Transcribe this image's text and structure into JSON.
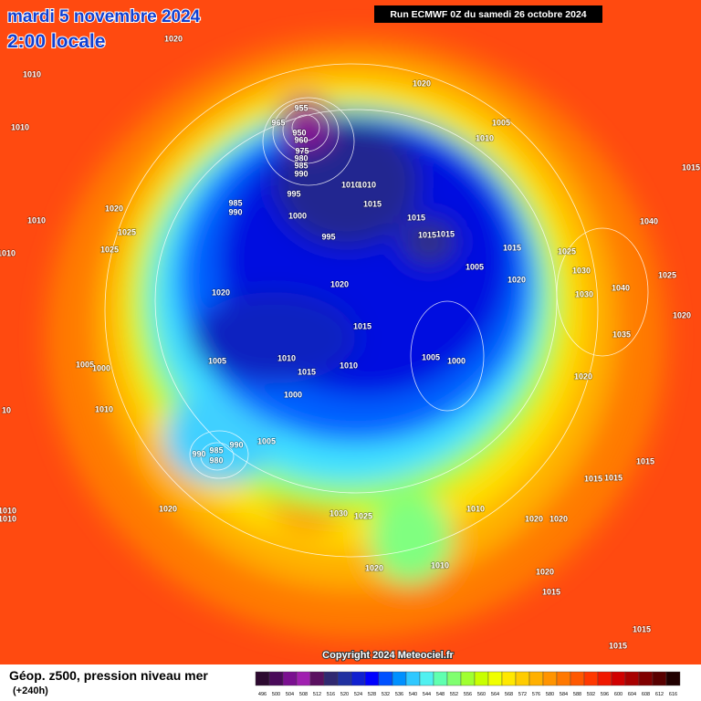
{
  "header": {
    "title": "mardi 5 novembre 2024",
    "subtitle": "2:00 locale",
    "run": "Run ECMWF 0Z du samedi 26 octobre 2024"
  },
  "copyright": "Copyright 2024 Meteociel.fr",
  "footer": {
    "label": "Géop. z500, pression niveau mer",
    "lead": "(+240h)"
  },
  "scale": {
    "labels": [
      496,
      500,
      504,
      508,
      512,
      516,
      520,
      524,
      528,
      532,
      536,
      540,
      544,
      548,
      552,
      556,
      560,
      564,
      568,
      572,
      576,
      580,
      584,
      588,
      592,
      596,
      600,
      604,
      608,
      612,
      616
    ],
    "colors": [
      "#2d0a30",
      "#4a0a5a",
      "#7a1090",
      "#a020b0",
      "#5a1060",
      "#302870",
      "#2030a0",
      "#1020d0",
      "#0000ff",
      "#0050ff",
      "#0090ff",
      "#30c8ff",
      "#50f0f0",
      "#60ffb0",
      "#80ff70",
      "#a0ff30",
      "#c8ff00",
      "#f0ff00",
      "#ffe800",
      "#ffcc00",
      "#ffb000",
      "#ff9400",
      "#ff7800",
      "#ff5800",
      "#ff3800",
      "#f01800",
      "#d00000",
      "#a80000",
      "#800000",
      "#580000",
      "#200000"
    ]
  },
  "isobar_labels": [
    1020,
    1010,
    1010,
    1020,
    955,
    965,
    950,
    960,
    975,
    980,
    985,
    990,
    1005,
    1010,
    1015,
    995,
    985,
    990,
    1010,
    1010,
    1015,
    1020,
    1010,
    1025,
    1000,
    995,
    1015,
    1015,
    1015,
    1015,
    1025,
    1040,
    1025,
    1010,
    1005,
    1030,
    1020,
    1020,
    1020,
    1030,
    1040,
    1025,
    1020,
    1015,
    1035,
    1005,
    1000,
    1005,
    1010,
    1010,
    1015,
    1005,
    1000,
    1020,
    1000,
    1010,
    10,
    990,
    985,
    980,
    990,
    1005,
    1015,
    1015,
    1015,
    1030,
    1025,
    1010,
    1020,
    1020,
    1020,
    1010,
    1010,
    1020,
    1010,
    1020,
    1015,
    1015,
    1015
  ]
}
